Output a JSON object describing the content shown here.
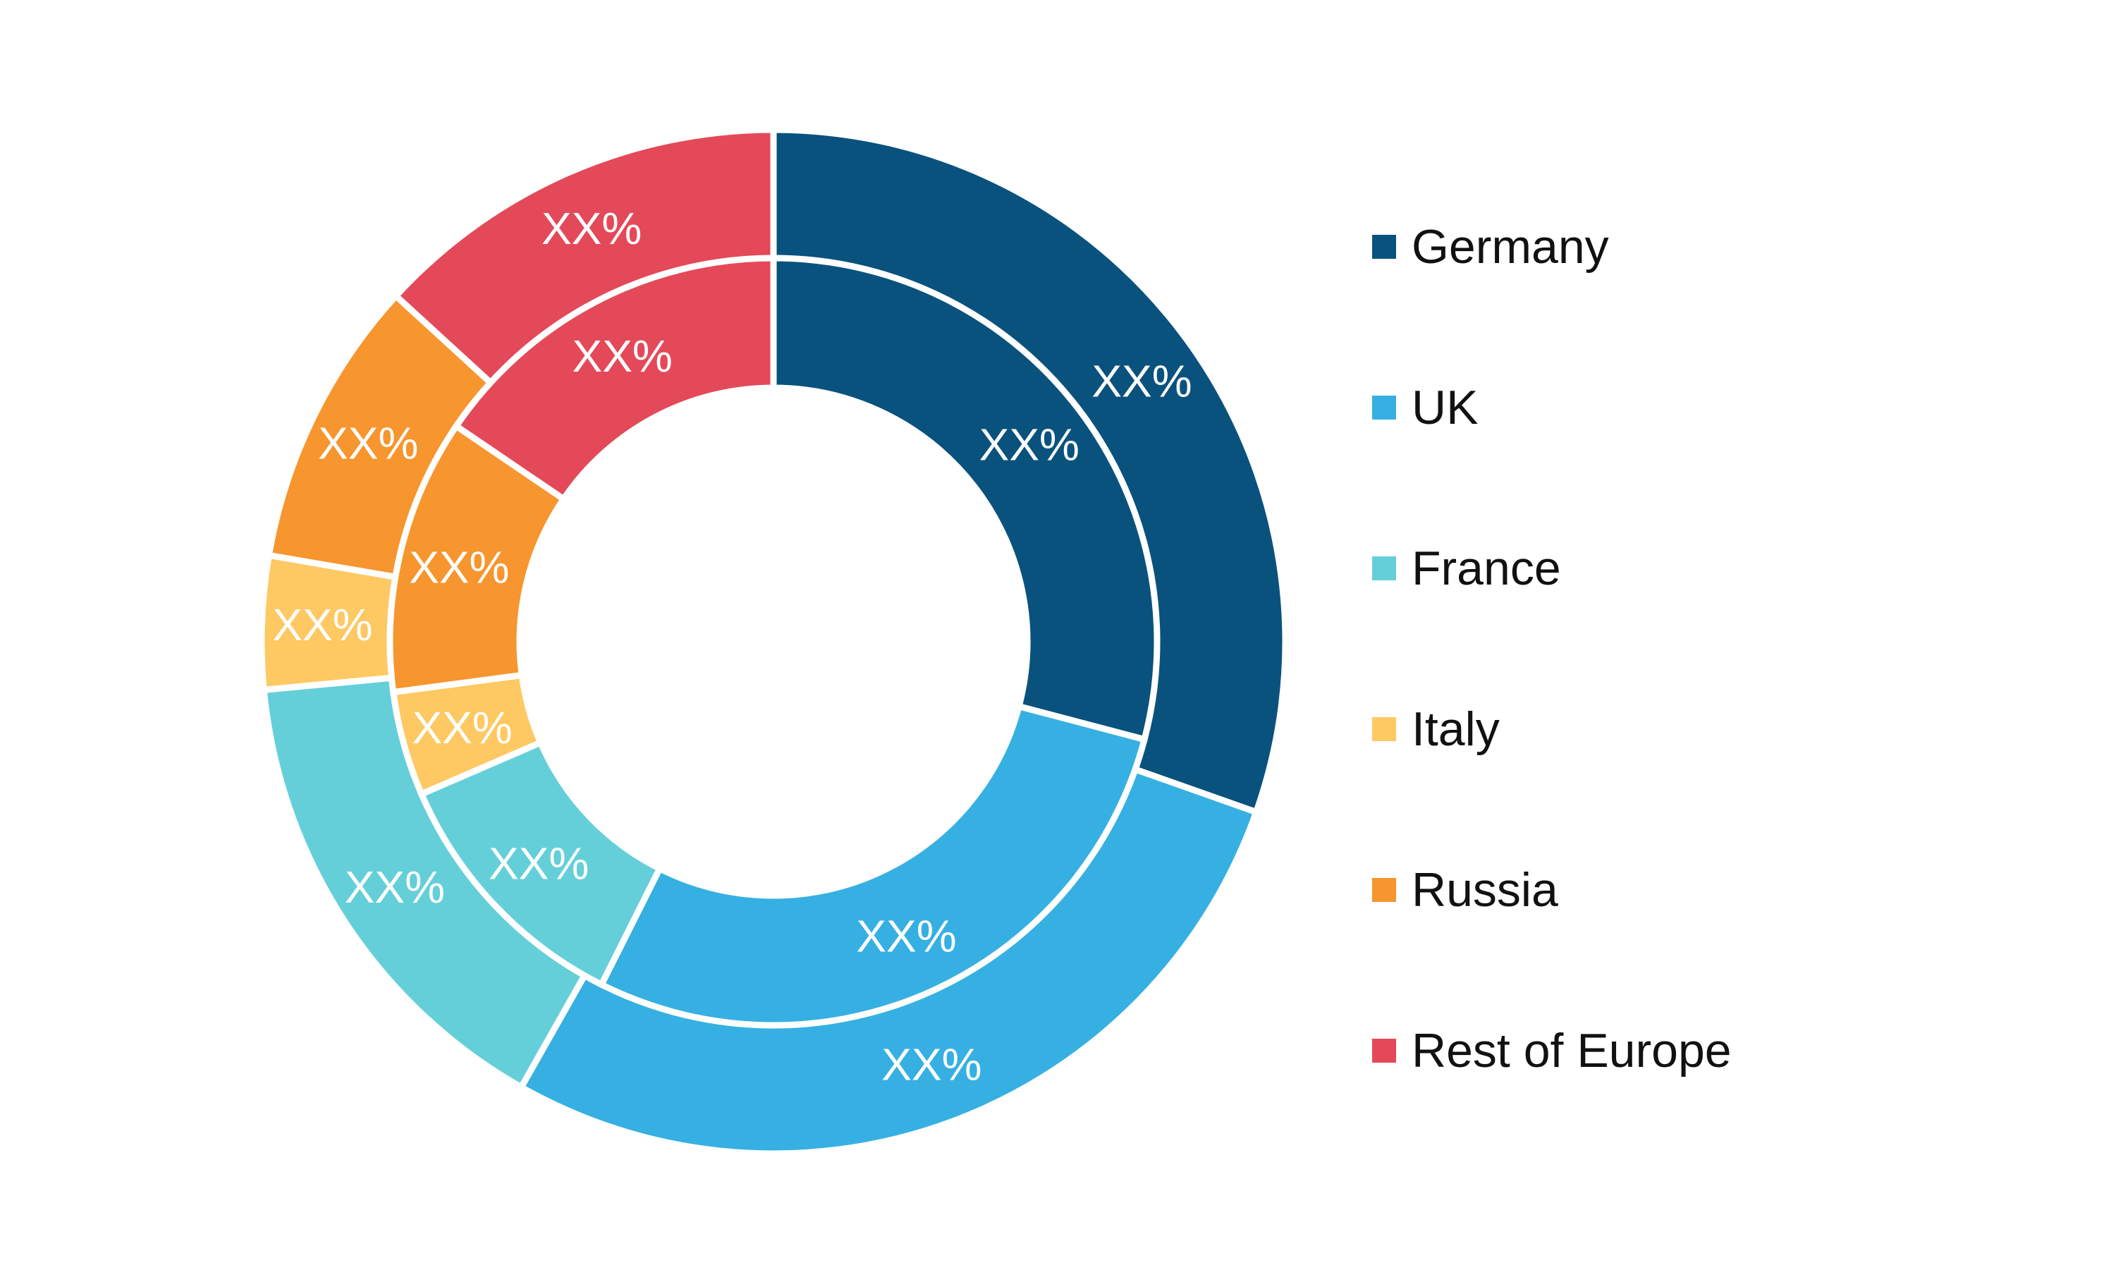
{
  "chart_data": {
    "type": "donut",
    "categories": [
      "Germany",
      "UK",
      "France",
      "Italy",
      "Russia",
      "Rest of Europe"
    ],
    "colors": {
      "Germany": "#0a527e",
      "UK": "#36b0e2",
      "France": "#65cfd9",
      "Italy": "#fec863",
      "Russia": "#f7952e",
      "Rest of Europe": "#e44959"
    },
    "series": [
      {
        "ring": "outer",
        "values": [
          30.4,
          27.8,
          15.3,
          4.2,
          9.1,
          13.2
        ],
        "labels": [
          "XX%",
          "XX%",
          "XX%",
          "XX%",
          "XX%",
          "XX%"
        ]
      },
      {
        "ring": "inner",
        "values": [
          29.1,
          28.3,
          11.1,
          4.4,
          11.6,
          15.5
        ],
        "labels": [
          "XX%",
          "XX%",
          "XX%",
          "XX%",
          "XX%",
          "XX%"
        ]
      }
    ],
    "legend": {
      "position": "right",
      "items": [
        "Germany",
        "UK",
        "France",
        "Italy",
        "Russia",
        "Rest of Europe"
      ]
    }
  }
}
